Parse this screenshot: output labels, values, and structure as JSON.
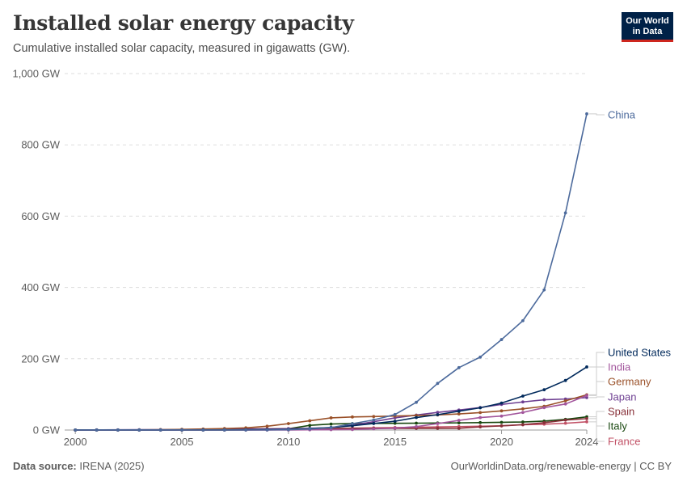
{
  "header": {
    "title": "Installed solar energy capacity",
    "subtitle": "Cumulative installed solar capacity, measured in gigawatts (GW).",
    "logo_line1": "Our World",
    "logo_line2": "in Data"
  },
  "footer": {
    "source_label": "Data source:",
    "source_value": "IRENA (2025)",
    "right_text": "OurWorldinData.org/renewable-energy | CC BY"
  },
  "chart_data": {
    "type": "line",
    "title": "Installed solar energy capacity",
    "subtitle": "Cumulative installed solar capacity, measured in gigawatts (GW).",
    "xlabel": "",
    "ylabel": "",
    "xlim": [
      2000,
      2024
    ],
    "ylim": [
      0,
      1000
    ],
    "y_ticks": [
      0,
      200,
      400,
      600,
      800,
      1000
    ],
    "y_tick_labels": [
      "0 GW",
      "200 GW",
      "400 GW",
      "600 GW",
      "800 GW",
      "1,000 GW"
    ],
    "x_ticks": [
      2000,
      2005,
      2010,
      2015,
      2020,
      2024
    ],
    "x_tick_labels": [
      "2000",
      "2005",
      "2010",
      "2015",
      "2020",
      "2024"
    ],
    "grid": "horizontal dashed",
    "legend": "inline labels at right end of lines",
    "x": [
      2000,
      2001,
      2002,
      2003,
      2004,
      2005,
      2006,
      2007,
      2008,
      2009,
      2010,
      2011,
      2012,
      2013,
      2014,
      2015,
      2016,
      2017,
      2018,
      2019,
      2020,
      2021,
      2022,
      2023,
      2024
    ],
    "series": [
      {
        "name": "China",
        "color": "#4c6a9c",
        "values": [
          0.02,
          0.03,
          0.05,
          0.06,
          0.07,
          0.07,
          0.08,
          0.1,
          0.14,
          0.3,
          1,
          3,
          6.7,
          17.8,
          28.4,
          43.5,
          77.8,
          130.8,
          175,
          204.6,
          253.8,
          306.7,
          393,
          609,
          887
        ]
      },
      {
        "name": "United States",
        "color": "#00295b",
        "values": [
          0.1,
          0.1,
          0.1,
          0.1,
          0.2,
          0.3,
          0.4,
          0.5,
          0.8,
          1.2,
          2,
          4,
          7.3,
          12,
          18.3,
          24.7,
          35.1,
          43.1,
          52.8,
          62.4,
          75.6,
          95.2,
          113,
          139,
          177
        ]
      },
      {
        "name": "India",
        "color": "#a2559c",
        "values": [
          0,
          0,
          0,
          0,
          0,
          0,
          0,
          0,
          0,
          0,
          0.1,
          0.6,
          1,
          1.4,
          3.4,
          5.4,
          9.6,
          18,
          27.1,
          35,
          39.2,
          49.3,
          62.8,
          73,
          97
        ]
      },
      {
        "name": "Germany",
        "color": "#9a5129",
        "values": [
          0.1,
          0.2,
          0.3,
          0.4,
          1.1,
          2,
          2.9,
          4.2,
          6.1,
          10.6,
          18,
          25.9,
          34.1,
          36.7,
          37.9,
          39.2,
          40.7,
          42.3,
          45.2,
          49,
          53.7,
          59.4,
          66.6,
          82,
          99
        ]
      },
      {
        "name": "Japan",
        "color": "#6d3e91",
        "values": [
          0.3,
          0.5,
          0.6,
          0.9,
          1.1,
          1.4,
          1.7,
          1.9,
          2.1,
          2.6,
          3.6,
          4.9,
          6.6,
          13.6,
          23.3,
          34.2,
          42,
          49.5,
          56,
          63.2,
          71.9,
          78.8,
          84.9,
          87,
          91
        ]
      },
      {
        "name": "Spain",
        "color": "#883039",
        "values": [
          0,
          0,
          0,
          0,
          0,
          0.1,
          0.1,
          0.6,
          3.4,
          3.4,
          3.9,
          4.3,
          4.6,
          4.7,
          4.7,
          4.7,
          4.7,
          4.7,
          4.8,
          8.8,
          11.8,
          15.1,
          20.5,
          28,
          32
        ]
      },
      {
        "name": "Italy",
        "color": "#18470f",
        "values": [
          0,
          0,
          0,
          0,
          0,
          0,
          0,
          0.1,
          0.5,
          1.2,
          3.6,
          13.1,
          16.8,
          18.2,
          18.6,
          18.9,
          19.3,
          19.7,
          20.1,
          20.9,
          21.6,
          22.6,
          25,
          30,
          37
        ]
      },
      {
        "name": "France",
        "color": "#c15065",
        "values": [
          0,
          0,
          0,
          0,
          0,
          0,
          0,
          0,
          0.1,
          0.3,
          1.2,
          3,
          4.4,
          5.3,
          6.1,
          7.1,
          7.7,
          8.6,
          9.6,
          10.7,
          11.7,
          14.8,
          16.4,
          19,
          23
        ]
      }
    ]
  }
}
